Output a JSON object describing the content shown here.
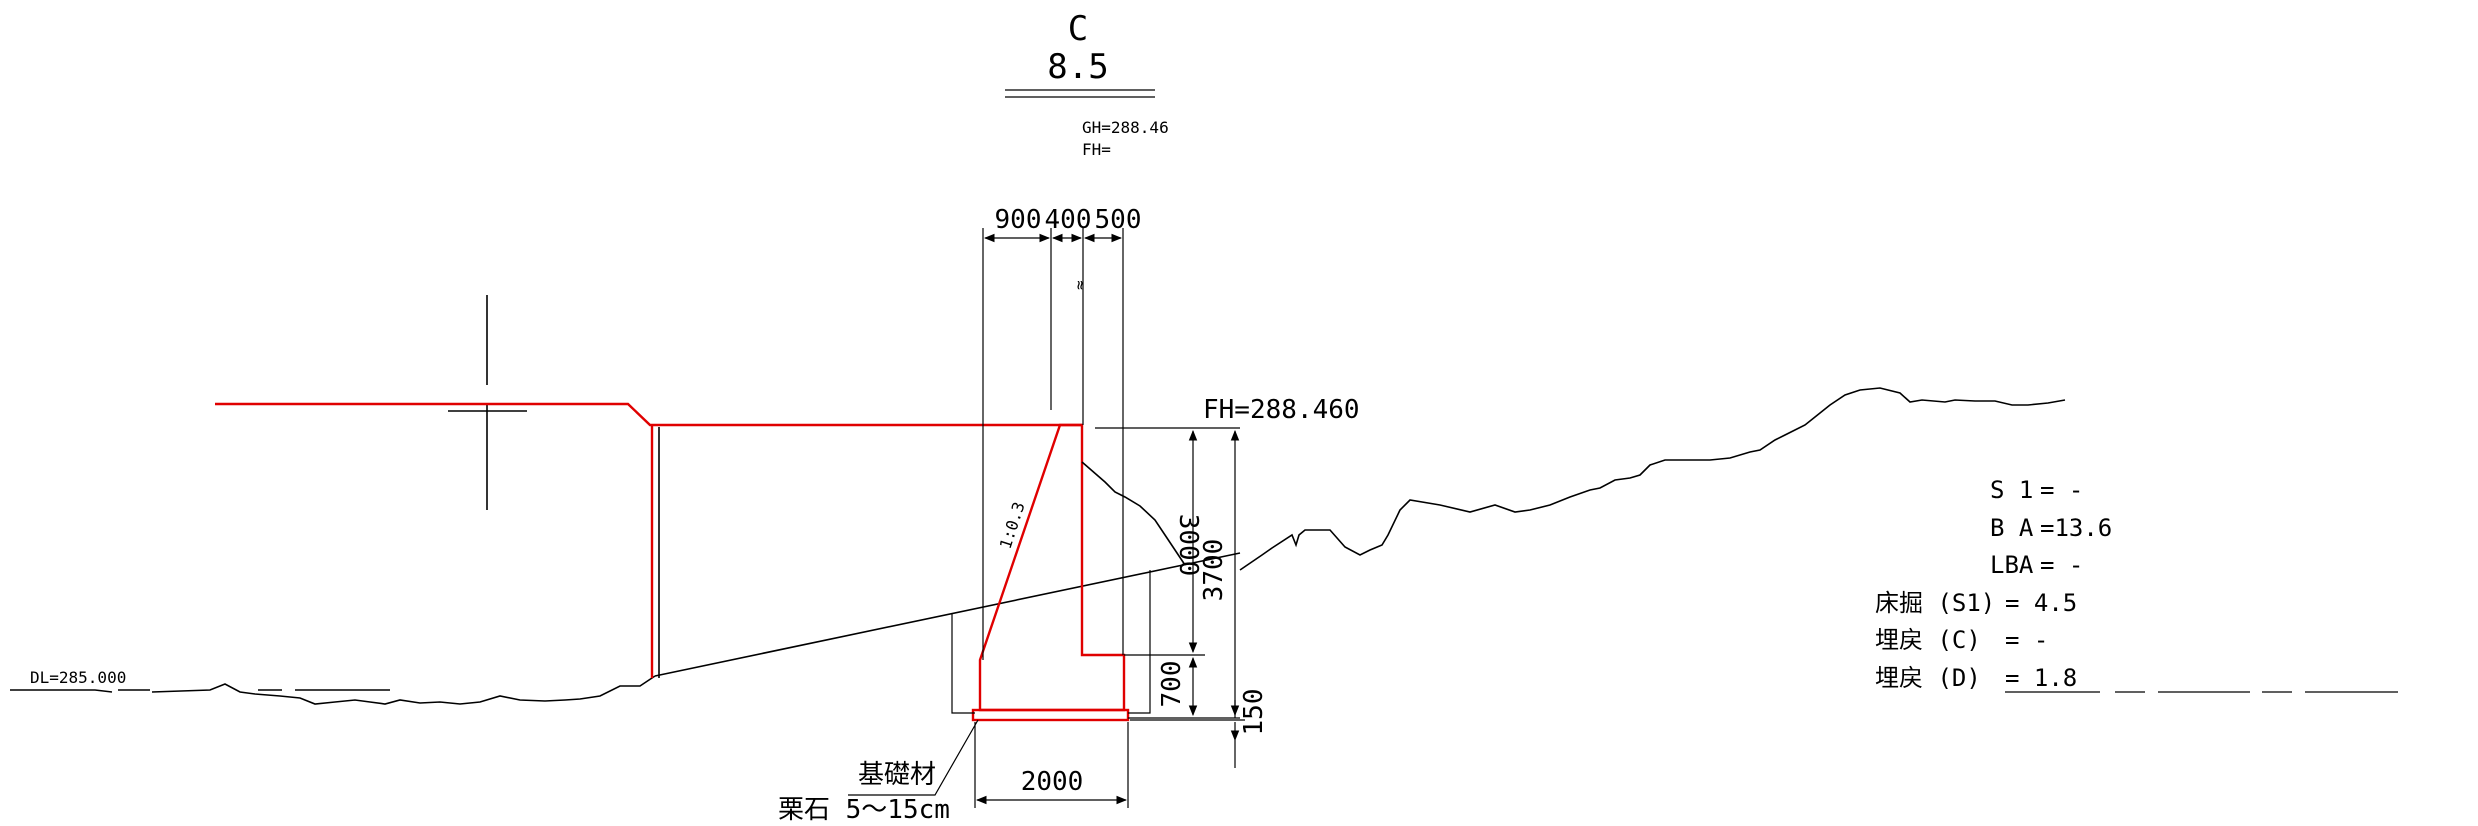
{
  "header": {
    "station": "C",
    "number": "8.5",
    "gh": "GH=288.46",
    "fh": "FH="
  },
  "elevations": {
    "fh": "FH=288.460",
    "dl": "DL=285.000"
  },
  "dimensions": {
    "top_900": "900",
    "top_400": "400",
    "top_500": "500",
    "small_mark": "≈",
    "slope": "1:0.3",
    "h_3000": "3000",
    "h_3700": "3700",
    "h_700": "700",
    "h_150": "150",
    "base_2000": "2000"
  },
  "labels": {
    "foundation": "基礎材",
    "gravel": "栗石 5～15cm"
  },
  "quantities": [
    {
      "label": "S 1",
      "value": "= -"
    },
    {
      "label": "B A",
      "value": "=13.6"
    },
    {
      "label": "LBA",
      "value": "= -"
    },
    {
      "label": "床掘 (S1)",
      "value": "= 4.5"
    },
    {
      "label": "埋戻 (C)",
      "value": "= -"
    },
    {
      "label": "埋戻 (D)",
      "value": "= 1.8"
    }
  ],
  "colors": {
    "structure": "#e00000",
    "lines": "#000000"
  }
}
